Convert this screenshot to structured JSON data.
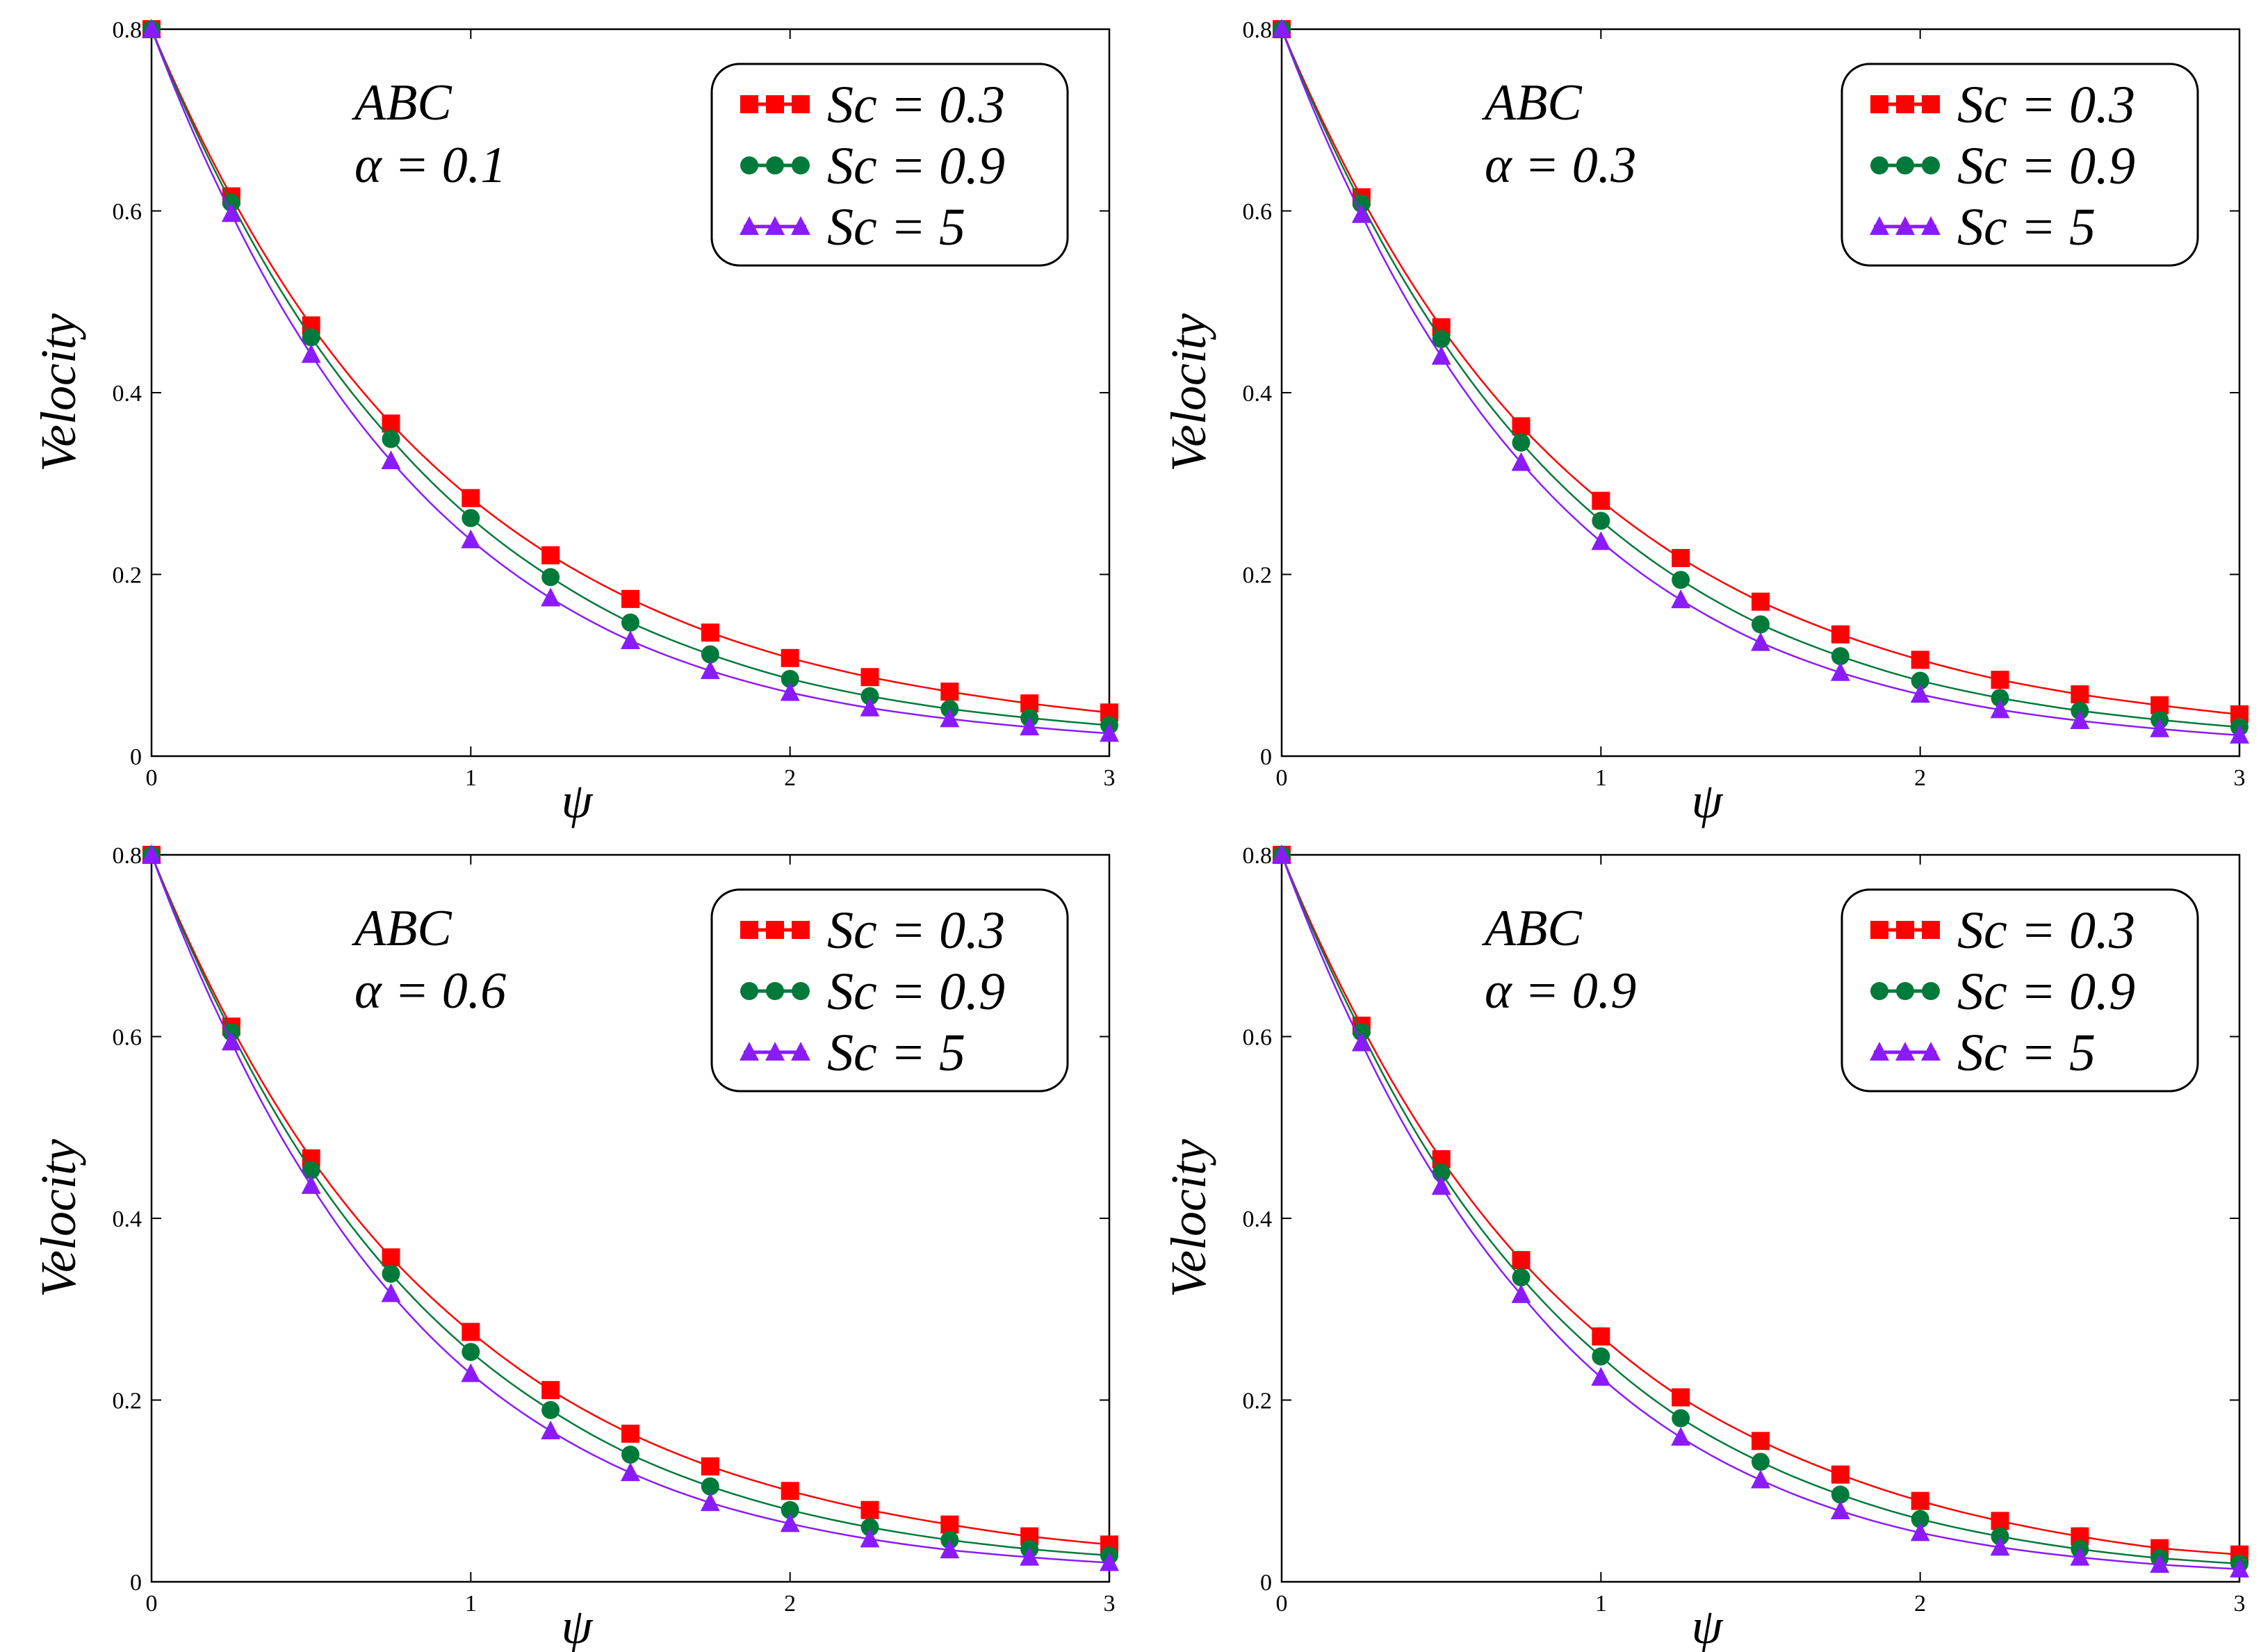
{
  "chart_data": [
    {
      "type": "line",
      "panel": "top-left",
      "annotation": "ABC",
      "alpha_label": "α = 0.1",
      "xlabel": "ψ",
      "ylabel": "Velocity",
      "xlim": [
        0,
        3
      ],
      "ylim": [
        0,
        0.8
      ],
      "xticks": [
        "0",
        "1",
        "2",
        "3"
      ],
      "yticks": [
        "0",
        "0.2",
        "0.4",
        "0.6",
        "0.8"
      ],
      "legend_position": "top-right",
      "x": [
        0,
        0.25,
        0.5,
        0.75,
        1.0,
        1.25,
        1.5,
        1.75,
        2.0,
        2.25,
        2.5,
        2.75,
        3.0
      ],
      "series": [
        {
          "name": "Sc = 0.3",
          "color": "#ff0000",
          "marker": "square",
          "values": [
            0.8,
            0.616,
            0.474,
            0.366,
            0.284,
            0.221,
            0.173,
            0.136,
            0.108,
            0.087,
            0.071,
            0.058,
            0.048
          ]
        },
        {
          "name": "Sc = 0.9",
          "color": "#007a3a",
          "marker": "circle",
          "values": [
            0.8,
            0.609,
            0.461,
            0.349,
            0.262,
            0.197,
            0.147,
            0.112,
            0.085,
            0.066,
            0.052,
            0.042,
            0.034
          ]
        },
        {
          "name": "Sc = 5",
          "color": "#8a1bff",
          "marker": "triangle",
          "values": [
            0.8,
            0.597,
            0.442,
            0.325,
            0.238,
            0.174,
            0.127,
            0.094,
            0.07,
            0.053,
            0.041,
            0.032,
            0.025
          ]
        }
      ]
    },
    {
      "type": "line",
      "panel": "top-right",
      "annotation": "ABC",
      "alpha_label": "α = 0.3",
      "xlabel": "ψ",
      "ylabel": "Velocity",
      "xlim": [
        0,
        3
      ],
      "ylim": [
        0,
        0.8
      ],
      "xticks": [
        "0",
        "1",
        "2",
        "3"
      ],
      "yticks": [
        "0",
        "0.2",
        "0.4",
        "0.6",
        "0.8"
      ],
      "legend_position": "top-right",
      "x": [
        0,
        0.25,
        0.5,
        0.75,
        1.0,
        1.25,
        1.5,
        1.75,
        2.0,
        2.25,
        2.5,
        2.75,
        3.0
      ],
      "series": [
        {
          "name": "Sc = 0.3",
          "color": "#ff0000",
          "marker": "square",
          "values": [
            0.8,
            0.615,
            0.472,
            0.363,
            0.281,
            0.218,
            0.17,
            0.134,
            0.106,
            0.084,
            0.068,
            0.056,
            0.046
          ]
        },
        {
          "name": "Sc = 0.9",
          "color": "#007a3a",
          "marker": "circle",
          "values": [
            0.8,
            0.608,
            0.459,
            0.345,
            0.259,
            0.194,
            0.145,
            0.11,
            0.083,
            0.064,
            0.05,
            0.04,
            0.032
          ]
        },
        {
          "name": "Sc = 5",
          "color": "#8a1bff",
          "marker": "triangle",
          "values": [
            0.8,
            0.596,
            0.44,
            0.323,
            0.236,
            0.172,
            0.125,
            0.092,
            0.068,
            0.051,
            0.039,
            0.03,
            0.023
          ]
        }
      ]
    },
    {
      "type": "line",
      "panel": "bottom-left",
      "annotation": "ABC",
      "alpha_label": "α = 0.6",
      "xlabel": "ψ",
      "ylabel": "Velocity",
      "xlim": [
        0,
        3
      ],
      "ylim": [
        0,
        0.8
      ],
      "xticks": [
        "0",
        "1",
        "2",
        "3"
      ],
      "yticks": [
        "0",
        "0.2",
        "0.4",
        "0.6",
        "0.8"
      ],
      "legend_position": "top-right",
      "x": [
        0,
        0.25,
        0.5,
        0.75,
        1.0,
        1.25,
        1.5,
        1.75,
        2.0,
        2.25,
        2.5,
        2.75,
        3.0
      ],
      "series": [
        {
          "name": "Sc = 0.3",
          "color": "#ff0000",
          "marker": "square",
          "values": [
            0.8,
            0.611,
            0.466,
            0.357,
            0.275,
            0.211,
            0.163,
            0.127,
            0.1,
            0.079,
            0.063,
            0.05,
            0.041
          ]
        },
        {
          "name": "Sc = 0.9",
          "color": "#007a3a",
          "marker": "circle",
          "values": [
            0.8,
            0.605,
            0.453,
            0.339,
            0.253,
            0.189,
            0.14,
            0.105,
            0.079,
            0.06,
            0.046,
            0.036,
            0.029
          ]
        },
        {
          "name": "Sc = 5",
          "color": "#8a1bff",
          "marker": "triangle",
          "values": [
            0.8,
            0.594,
            0.436,
            0.317,
            0.229,
            0.166,
            0.12,
            0.087,
            0.064,
            0.047,
            0.035,
            0.027,
            0.021
          ]
        }
      ]
    },
    {
      "type": "line",
      "panel": "bottom-right",
      "annotation": "ABC",
      "alpha_label": "α = 0.9",
      "xlabel": "ψ",
      "ylabel": "Velocity",
      "xlim": [
        0,
        3
      ],
      "ylim": [
        0,
        0.8
      ],
      "xticks": [
        "0",
        "1",
        "2",
        "3"
      ],
      "yticks": [
        "0",
        "0.2",
        "0.4",
        "0.6",
        "0.8"
      ],
      "legend_position": "top-right",
      "x": [
        0,
        0.25,
        0.5,
        0.75,
        1.0,
        1.25,
        1.5,
        1.75,
        2.0,
        2.25,
        2.5,
        2.75,
        3.0
      ],
      "series": [
        {
          "name": "Sc = 0.3",
          "color": "#ff0000",
          "marker": "square",
          "values": [
            0.8,
            0.612,
            0.465,
            0.354,
            0.27,
            0.203,
            0.155,
            0.118,
            0.089,
            0.067,
            0.05,
            0.037,
            0.03
          ]
        },
        {
          "name": "Sc = 0.9",
          "color": "#007a3a",
          "marker": "circle",
          "values": [
            0.8,
            0.605,
            0.45,
            0.335,
            0.248,
            0.18,
            0.132,
            0.096,
            0.069,
            0.05,
            0.036,
            0.026,
            0.02
          ]
        },
        {
          "name": "Sc = 5",
          "color": "#8a1bff",
          "marker": "triangle",
          "values": [
            0.8,
            0.593,
            0.435,
            0.316,
            0.225,
            0.159,
            0.112,
            0.078,
            0.054,
            0.038,
            0.027,
            0.019,
            0.014
          ]
        }
      ]
    }
  ]
}
